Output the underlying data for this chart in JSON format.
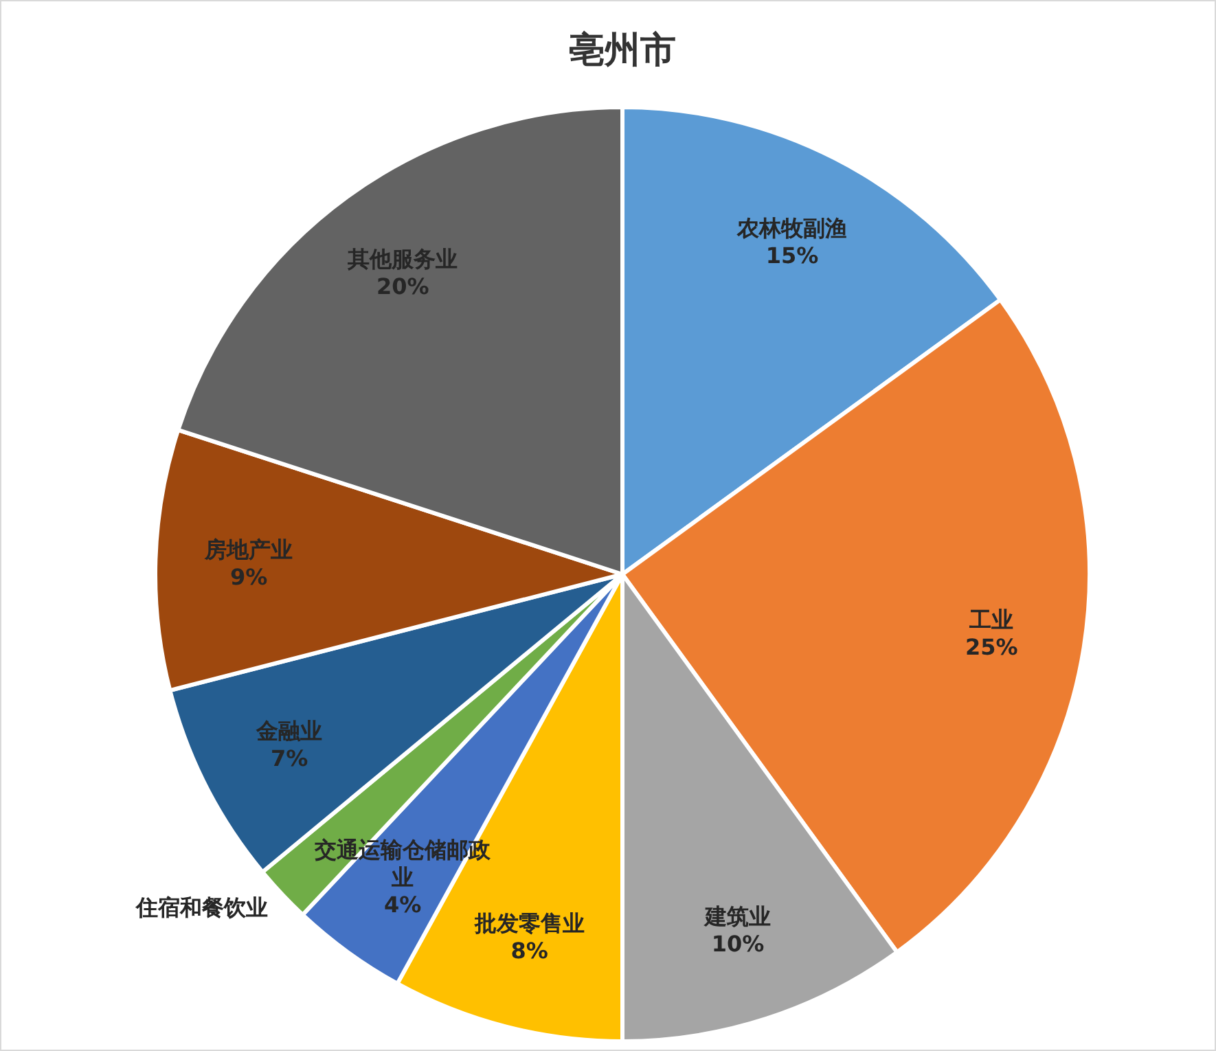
{
  "chart_data": {
    "type": "pie",
    "title": "亳州市",
    "categories": [
      "农林牧副渔",
      "工业",
      "建筑业",
      "批发零售业",
      "交通运输仓储邮政业",
      "住宿和餐饮业",
      "金融业",
      "房地产业",
      "其他服务业"
    ],
    "values": [
      15,
      25,
      10,
      8,
      4,
      2,
      7,
      9,
      20
    ],
    "value_labels": [
      "15%",
      "25%",
      "10%",
      "8%",
      "4%",
      null,
      "7%",
      "9%",
      "20%"
    ],
    "colors": [
      "#5b9bd5",
      "#ed7d31",
      "#a5a5a5",
      "#ffc000",
      "#4472c4",
      "#70ad47",
      "#255e91",
      "#9e480e",
      "#636363"
    ]
  }
}
